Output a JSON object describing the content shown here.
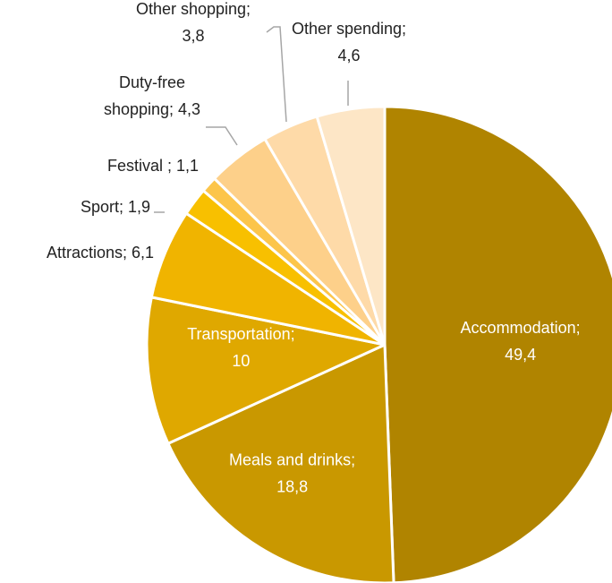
{
  "chart_data": {
    "type": "pie",
    "title": "",
    "start_angle_deg": 0,
    "direction": "clockwise",
    "slices": [
      {
        "label": "Accommodation",
        "value": 49.4,
        "label_text": "Accommodation;",
        "value_text": "49,4",
        "color": "#b08400"
      },
      {
        "label": "Meals and drinks",
        "value": 18.8,
        "label_text": "Meals and drinks;",
        "value_text": "18,8",
        "color": "#c99800"
      },
      {
        "label": "Transportation",
        "value": 10,
        "label_text": "Transportation;",
        "value_text": "10",
        "color": "#dfa800"
      },
      {
        "label": "Attractions",
        "value": 6.1,
        "label_text": "Attractions; 6,1",
        "value_text": "",
        "color": "#f0b400"
      },
      {
        "label": "Sport",
        "value": 1.9,
        "label_text": "Sport; 1,9",
        "value_text": "",
        "color": "#f8c000"
      },
      {
        "label": "Festival",
        "value": 1.1,
        "label_text": "Festival ; 1,1",
        "value_text": "",
        "color": "#fcc54a"
      },
      {
        "label": "Duty-free shopping",
        "value": 4.3,
        "label_text": "Duty-free",
        "value_text": "shopping; 4,3",
        "color": "#fdd08a"
      },
      {
        "label": "Other shopping",
        "value": 3.8,
        "label_text": "Other shopping;",
        "value_text": "3,8",
        "color": "#fedaa8"
      },
      {
        "label": "Other spending",
        "value": 4.6,
        "label_text": "Other spending;",
        "value_text": "4,6",
        "color": "#fde6c6"
      }
    ]
  }
}
